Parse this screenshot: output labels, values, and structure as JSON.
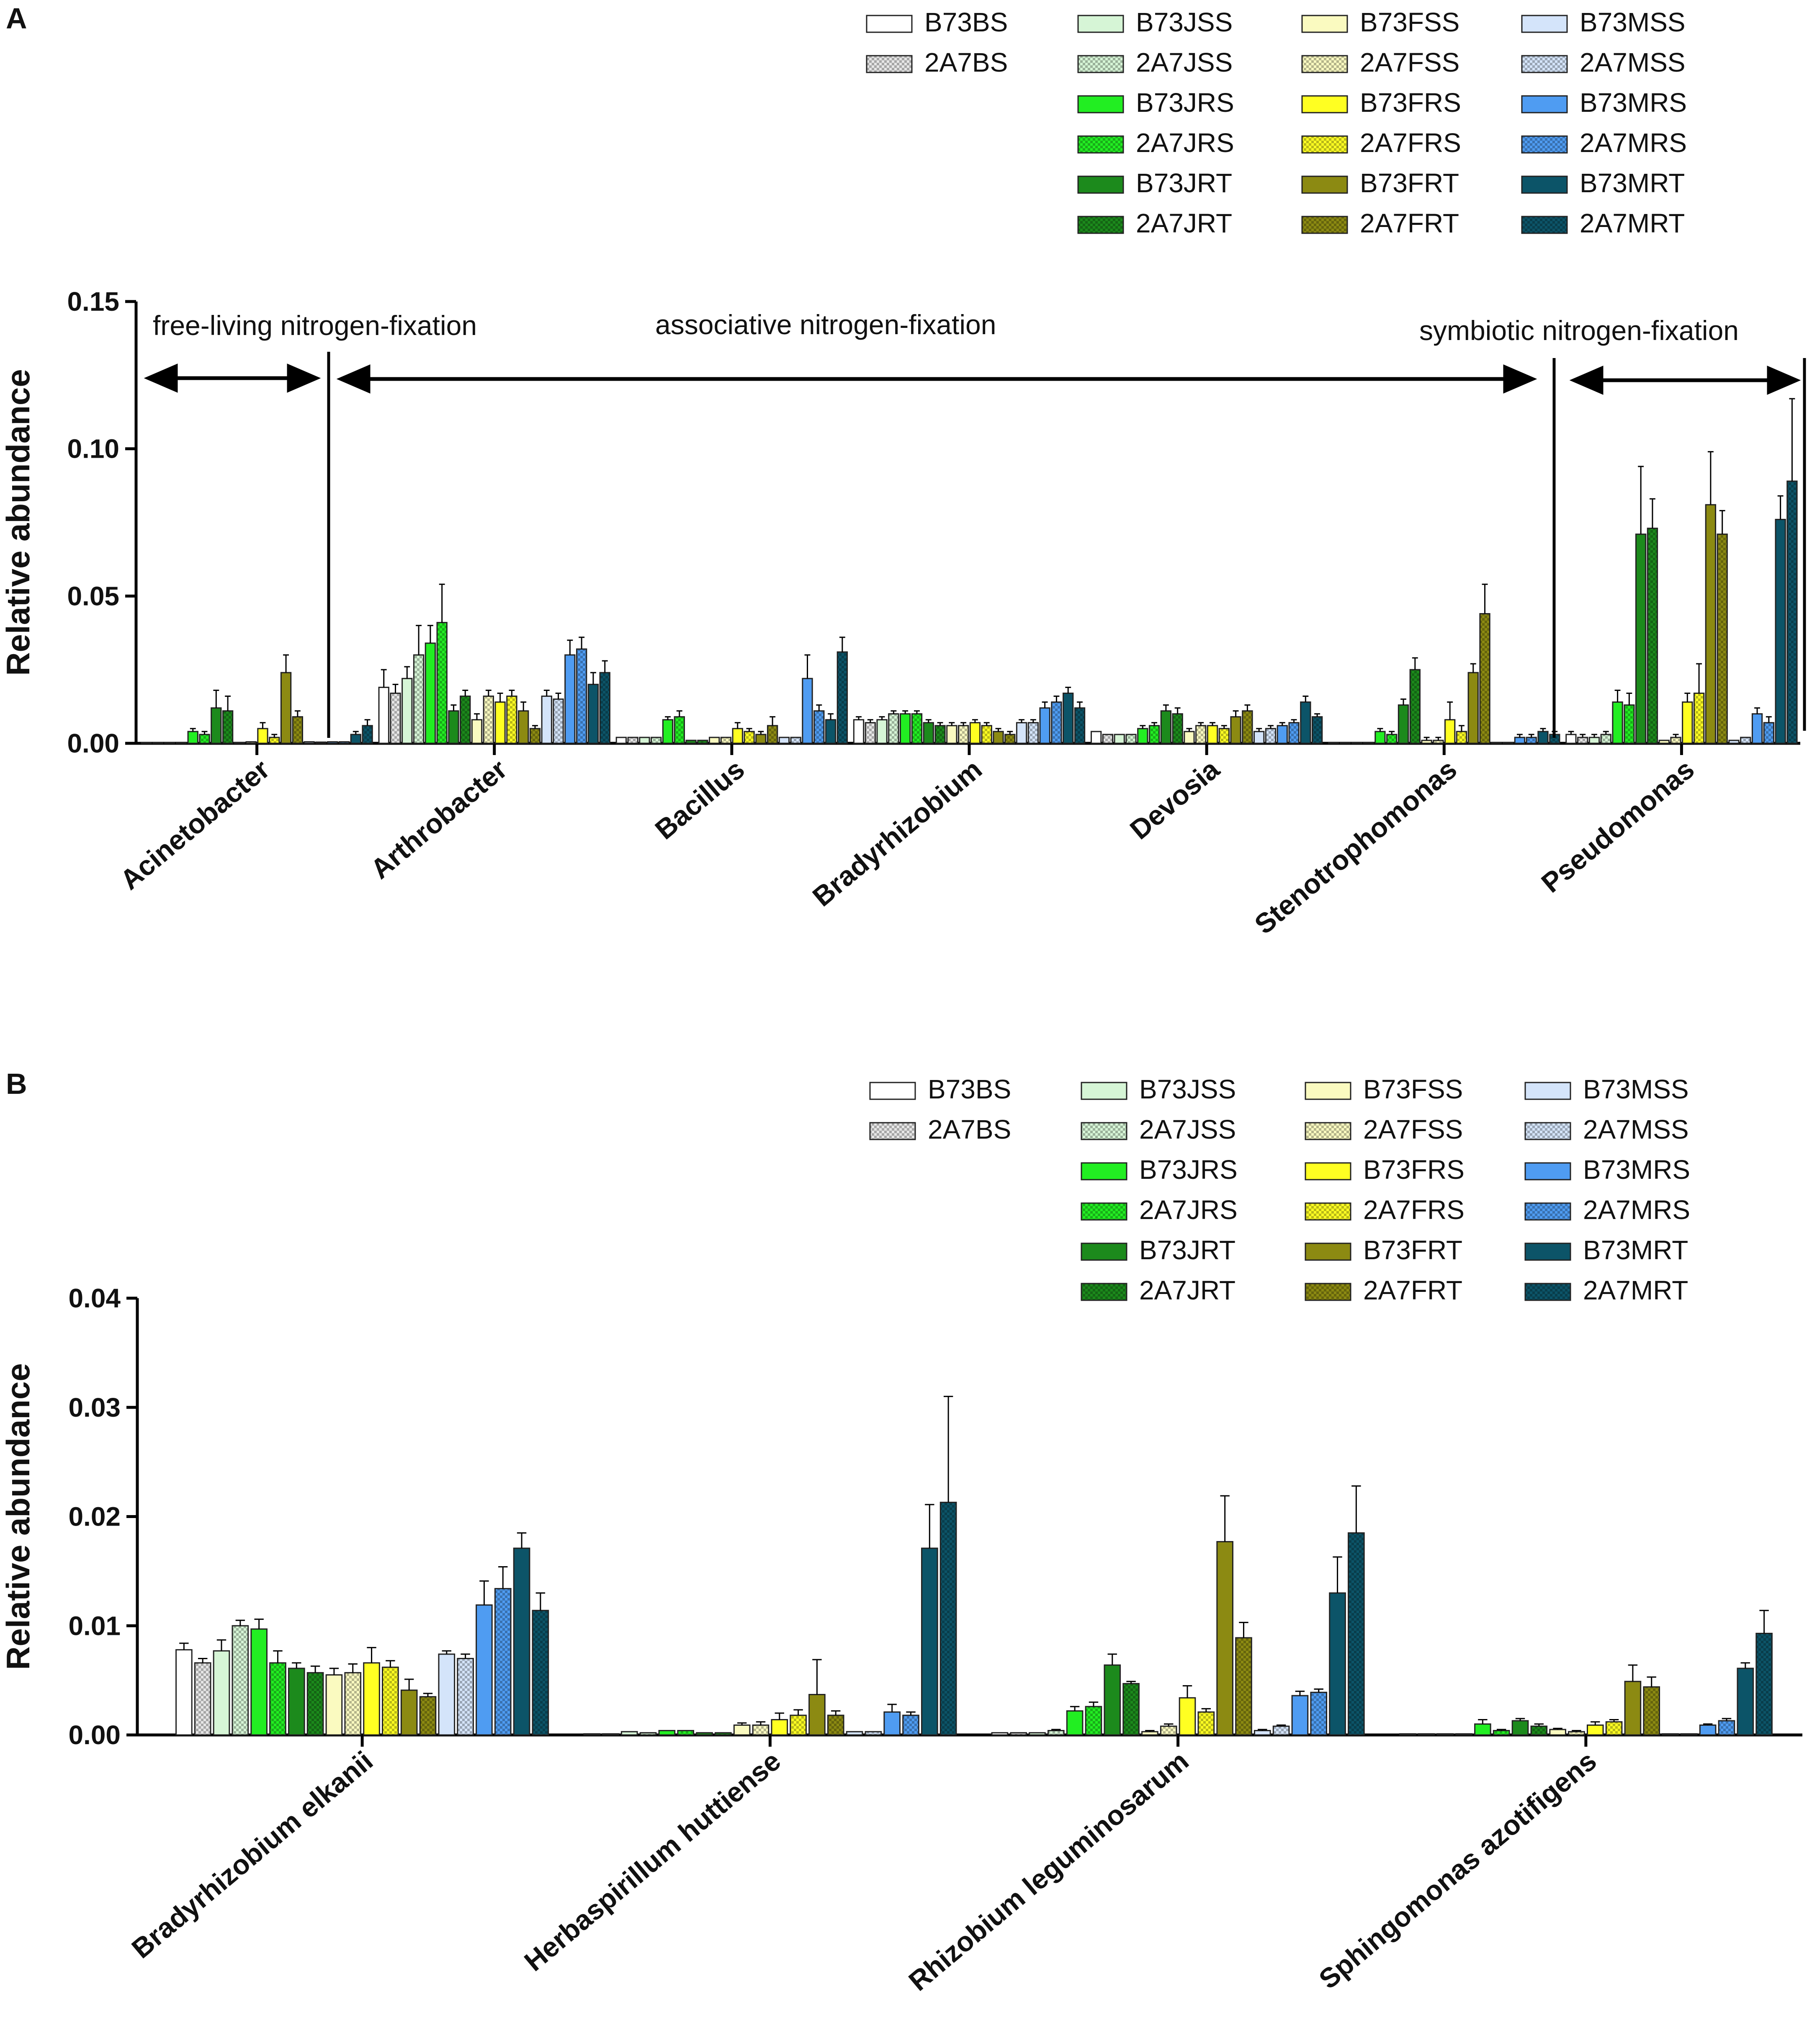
{
  "panels": {
    "a": {
      "letter": "A"
    },
    "b": {
      "letter": "B"
    }
  },
  "colors": {
    "B73BS": {
      "fill": "#ffffff",
      "pattern": false
    },
    "2A7BS": {
      "fill": "#e6e6e6",
      "pattern": true
    },
    "B73JSS": {
      "fill": "#d6f5d6",
      "pattern": false
    },
    "2A7JSS": {
      "fill": "#d6f5d6",
      "pattern": true
    },
    "B73JRS": {
      "fill": "#22ee22",
      "pattern": false
    },
    "2A7JRS": {
      "fill": "#22ee22",
      "pattern": true
    },
    "B73JRT": {
      "fill": "#1c8a1c",
      "pattern": false
    },
    "2A7JRT": {
      "fill": "#1c8a1c",
      "pattern": true
    },
    "B73FSS": {
      "fill": "#fafac0",
      "pattern": false
    },
    "2A7FSS": {
      "fill": "#fafac0",
      "pattern": true
    },
    "B73FRS": {
      "fill": "#ffff22",
      "pattern": false
    },
    "2A7FRS": {
      "fill": "#ffff22",
      "pattern": true
    },
    "B73FRT": {
      "fill": "#8c8a12",
      "pattern": false
    },
    "2A7FRT": {
      "fill": "#8c8a12",
      "pattern": true
    },
    "B73MSS": {
      "fill": "#d4e4fa",
      "pattern": false
    },
    "2A7MSS": {
      "fill": "#d4e4fa",
      "pattern": true
    },
    "B73MRS": {
      "fill": "#4f9cf2",
      "pattern": false
    },
    "2A7MRS": {
      "fill": "#4f9cf2",
      "pattern": true
    },
    "B73MRT": {
      "fill": "#0c5468",
      "pattern": false
    },
    "2A7MRT": {
      "fill": "#0c5468",
      "pattern": true
    }
  },
  "chart_data": [
    {
      "type": "bar",
      "panel": "A",
      "title": "",
      "xlabel": "",
      "ylabel": "Relative abundance",
      "ylim": [
        0,
        0.15
      ],
      "yticks": [
        "0.00",
        "0.05",
        "0.10",
        "0.15"
      ],
      "legend": {
        "columns": [
          [
            "B73BS",
            "2A7BS"
          ],
          [
            "B73JSS",
            "2A7JSS",
            "B73JRS",
            "2A7JRS",
            "B73JRT",
            "2A7JRT"
          ],
          [
            "B73FSS",
            "2A7FSS",
            "B73FRS",
            "2A7FRS",
            "B73FRT",
            "2A7FRT"
          ],
          [
            "B73MSS",
            "2A7MSS",
            "B73MRS",
            "2A7MRS",
            "B73MRT",
            "2A7MRT"
          ]
        ],
        "placement": "top-right"
      },
      "annotations": [
        "free-living nitrogen-fixation",
        "associative nitrogen-fixation",
        "symbiotic nitrogen-fixation"
      ],
      "series_names": [
        "B73BS",
        "2A7BS",
        "B73JSS",
        "2A7JSS",
        "B73JRS",
        "2A7JRS",
        "B73JRT",
        "2A7JRT",
        "B73FSS",
        "2A7FSS",
        "B73FRS",
        "2A7FRS",
        "B73FRT",
        "2A7FRT",
        "B73MSS",
        "2A7MSS",
        "B73MRS",
        "2A7MRS",
        "B73MRT",
        "2A7MRT"
      ],
      "categories": [
        "Acinetobacter",
        "Arthrobacter",
        "Bacillus",
        "Bradyrhizobium",
        "Devosia",
        "Stenotrophomonas",
        "Pseudomonas"
      ],
      "values": [
        [
          0.0002,
          0.0002,
          0.0002,
          0.0003,
          0.004,
          0.003,
          0.012,
          0.011,
          0.0003,
          0.0005,
          0.005,
          0.002,
          0.024,
          0.009,
          0.0005,
          0.0004,
          0.0005,
          0.0005,
          0.003,
          0.006
        ],
        [
          0.019,
          0.017,
          0.022,
          0.03,
          0.034,
          0.041,
          0.011,
          0.016,
          0.008,
          0.016,
          0.014,
          0.016,
          0.011,
          0.005,
          0.016,
          0.015,
          0.03,
          0.032,
          0.02,
          0.024
        ],
        [
          0.002,
          0.002,
          0.002,
          0.002,
          0.008,
          0.009,
          0.001,
          0.001,
          0.002,
          0.002,
          0.005,
          0.004,
          0.003,
          0.006,
          0.002,
          0.002,
          0.022,
          0.011,
          0.008,
          0.031
        ],
        [
          0.008,
          0.007,
          0.008,
          0.01,
          0.01,
          0.01,
          0.007,
          0.006,
          0.006,
          0.006,
          0.007,
          0.006,
          0.004,
          0.003,
          0.007,
          0.007,
          0.012,
          0.014,
          0.017,
          0.012
        ],
        [
          0.004,
          0.003,
          0.003,
          0.003,
          0.005,
          0.006,
          0.011,
          0.01,
          0.004,
          0.006,
          0.006,
          0.005,
          0.009,
          0.011,
          0.004,
          0.005,
          0.006,
          0.007,
          0.014,
          0.009
        ],
        [
          0.0003,
          0.0003,
          0.0003,
          0.0003,
          0.004,
          0.003,
          0.013,
          0.025,
          0.001,
          0.001,
          0.008,
          0.004,
          0.024,
          0.044,
          0.0003,
          0.0003,
          0.002,
          0.002,
          0.004,
          0.003
        ],
        [
          0.003,
          0.002,
          0.002,
          0.003,
          0.014,
          0.013,
          0.071,
          0.073,
          0.001,
          0.002,
          0.014,
          0.017,
          0.081,
          0.071,
          0.001,
          0.002,
          0.01,
          0.007,
          0.076,
          0.089
        ]
      ],
      "errors": [
        [
          0,
          0,
          0,
          0,
          0.001,
          0.001,
          0.006,
          0.005,
          0,
          0,
          0.002,
          0.001,
          0.006,
          0.002,
          0,
          0,
          0,
          0,
          0.001,
          0.002
        ],
        [
          0.006,
          0.003,
          0.004,
          0.01,
          0.006,
          0.013,
          0.002,
          0.002,
          0.002,
          0.002,
          0.003,
          0.002,
          0.003,
          0.001,
          0.002,
          0.002,
          0.005,
          0.004,
          0.004,
          0.004
        ],
        [
          0,
          0,
          0,
          0,
          0.001,
          0.002,
          0,
          0,
          0,
          0,
          0.002,
          0.001,
          0.001,
          0.003,
          0,
          0,
          0.008,
          0.002,
          0.002,
          0.005
        ],
        [
          0.001,
          0.001,
          0.001,
          0.001,
          0.001,
          0.001,
          0.001,
          0.001,
          0.001,
          0.001,
          0.001,
          0.001,
          0.001,
          0.001,
          0.001,
          0.001,
          0.002,
          0.002,
          0.002,
          0.002
        ],
        [
          0,
          0,
          0,
          0,
          0.001,
          0.001,
          0.002,
          0.002,
          0.001,
          0.001,
          0.001,
          0.001,
          0.002,
          0.002,
          0.001,
          0.001,
          0.001,
          0.001,
          0.002,
          0.001
        ],
        [
          0,
          0,
          0,
          0,
          0.001,
          0.001,
          0.002,
          0.004,
          0.001,
          0.001,
          0.006,
          0.002,
          0.003,
          0.01,
          0,
          0,
          0.001,
          0.001,
          0.001,
          0.001
        ],
        [
          0.001,
          0.001,
          0.001,
          0.001,
          0.004,
          0.004,
          0.023,
          0.01,
          0,
          0.001,
          0.003,
          0.01,
          0.018,
          0.008,
          0,
          0,
          0.002,
          0.002,
          0.008,
          0.028
        ]
      ]
    },
    {
      "type": "bar",
      "panel": "B",
      "title": "",
      "xlabel": "",
      "ylabel": "Relative abundance",
      "ylim": [
        0,
        0.04
      ],
      "yticks": [
        "0.00",
        "0.01",
        "0.02",
        "0.03",
        "0.04"
      ],
      "legend": {
        "columns": [
          [
            "B73BS",
            "2A7BS"
          ],
          [
            "B73JSS",
            "2A7JSS",
            "B73JRS",
            "2A7JRS",
            "B73JRT",
            "2A7JRT"
          ],
          [
            "B73FSS",
            "2A7FSS",
            "B73FRS",
            "2A7FRS",
            "B73FRT",
            "2A7FRT"
          ],
          [
            "B73MSS",
            "2A7MSS",
            "B73MRS",
            "2A7MRS",
            "B73MRT",
            "2A7MRT"
          ]
        ],
        "placement": "top-right"
      },
      "series_names": [
        "B73BS",
        "2A7BS",
        "B73JSS",
        "2A7JSS",
        "B73JRS",
        "2A7JRS",
        "B73JRT",
        "2A7JRT",
        "B73FSS",
        "2A7FSS",
        "B73FRS",
        "2A7FRS",
        "B73FRT",
        "2A7FRT",
        "B73MSS",
        "2A7MSS",
        "B73MRS",
        "2A7MRS",
        "B73MRT",
        "2A7MRT"
      ],
      "categories": [
        "Bradyrhizobium elkanii",
        "Herbaspirillum huttiense",
        "Rhizobium leguminosarum",
        "Sphingomonas azotifigens"
      ],
      "values": [
        [
          0.0078,
          0.0066,
          0.0077,
          0.01,
          0.0097,
          0.0066,
          0.0061,
          0.0057,
          0.0055,
          0.0057,
          0.0066,
          0.0062,
          0.0041,
          0.0035,
          0.0074,
          0.007,
          0.0119,
          0.0134,
          0.0171,
          0.0114
        ],
        [
          0.0001,
          0.0001,
          0.0003,
          0.0002,
          0.0004,
          0.0004,
          0.0002,
          0.0002,
          0.0009,
          0.0009,
          0.0014,
          0.0018,
          0.0037,
          0.0018,
          0.0003,
          0.0003,
          0.0021,
          0.0018,
          0.0171,
          0.0213
        ],
        [
          0.0002,
          0.0002,
          0.0002,
          0.0004,
          0.0022,
          0.0026,
          0.0064,
          0.0047,
          0.0003,
          0.0008,
          0.0034,
          0.0021,
          0.0177,
          0.0089,
          0.0004,
          0.0008,
          0.0036,
          0.0039,
          0.013,
          0.0185
        ],
        [
          0.0001,
          0.0001,
          0.0001,
          0.0001,
          0.001,
          0.0004,
          0.0013,
          0.0008,
          0.0005,
          0.0003,
          0.0009,
          0.0012,
          0.0049,
          0.0044,
          0.0001,
          0.0001,
          0.0009,
          0.0013,
          0.0061,
          0.0093
        ]
      ],
      "errors": [
        [
          0.0006,
          0.0004,
          0.001,
          0.0005,
          0.0009,
          0.0011,
          0.0005,
          0.0006,
          0.0006,
          0.0008,
          0.0014,
          0.0006,
          0.001,
          0.0003,
          0.0003,
          0.0004,
          0.0022,
          0.002,
          0.0014,
          0.0016
        ],
        [
          0,
          0,
          0,
          0,
          0,
          0,
          0,
          0,
          0.0002,
          0.0003,
          0.0006,
          0.0005,
          0.0032,
          0.0004,
          0,
          0,
          0.0007,
          0.0003,
          0.004,
          0.0097
        ],
        [
          0,
          0,
          0,
          0.0001,
          0.0004,
          0.0004,
          0.001,
          0.0002,
          0.0001,
          0.0002,
          0.0011,
          0.0003,
          0.0042,
          0.0014,
          0.0001,
          0.0001,
          0.0004,
          0.0003,
          0.0033,
          0.0043
        ],
        [
          0,
          0,
          0,
          0,
          0.0004,
          0.0001,
          0.0002,
          0.0002,
          0.0001,
          0.0001,
          0.0003,
          0.0002,
          0.0015,
          0.0009,
          0,
          0,
          0.0001,
          0.0002,
          0.0005,
          0.0021
        ]
      ]
    }
  ]
}
